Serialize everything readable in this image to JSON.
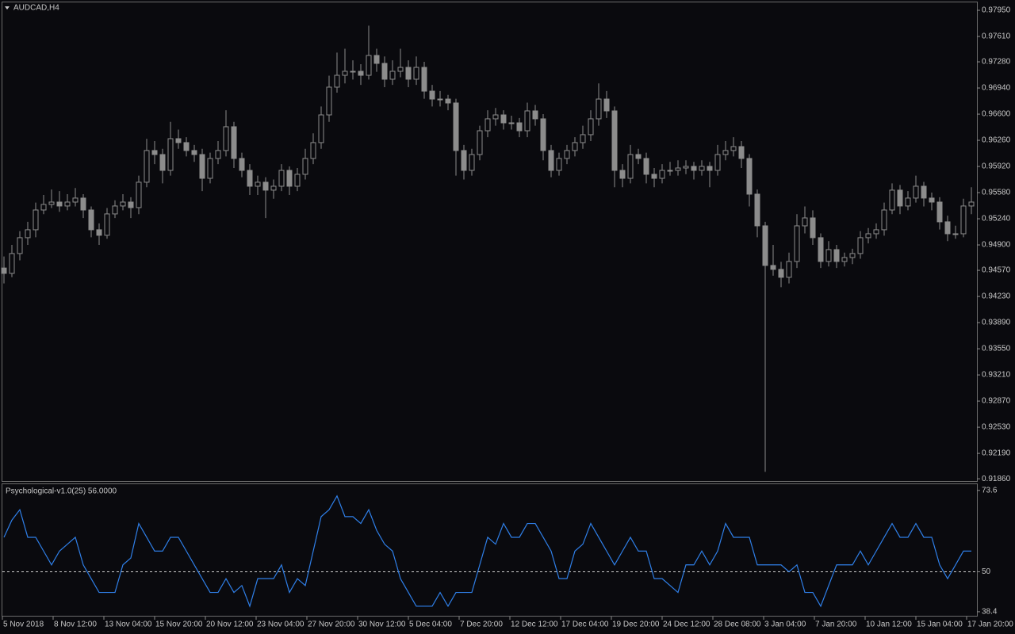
{
  "chart_data": [
    {
      "type": "candlestick",
      "title": "AUDCAD,H4",
      "color": "#8c8c8c",
      "open": [
        0.946,
        0.9453,
        0.94788,
        0.94994,
        0.95097,
        0.95354,
        0.95426,
        0.95457,
        0.95406,
        0.95457,
        0.95509,
        0.95354,
        0.95097,
        0.95025,
        0.95303,
        0.95406,
        0.95457,
        0.95385,
        0.95715,
        0.96127,
        0.96075,
        0.95869,
        0.96281,
        0.9623,
        0.96127,
        0.96075,
        0.95766,
        0.96024,
        0.96127,
        0.96436,
        0.96024,
        0.95869,
        0.95663,
        0.95715,
        0.95612,
        0.95663,
        0.95869,
        0.95663,
        0.95818,
        0.96024,
        0.9623,
        0.9659,
        0.96951,
        0.97105,
        0.97157,
        0.97157,
        0.97105,
        0.97363,
        0.9726,
        0.97054,
        0.97157,
        0.97208,
        0.97054,
        0.97208,
        0.96899,
        0.96796,
        0.96796,
        0.96745,
        0.96127,
        0.95869,
        0.96075,
        0.96384,
        0.96539,
        0.9659,
        0.96487,
        0.96487,
        0.96384,
        0.96642,
        0.96539,
        0.96127,
        0.95869,
        0.96024,
        0.96127,
        0.9623,
        0.96333,
        0.96539,
        0.96796,
        0.96642,
        0.95869,
        0.95766,
        0.96075,
        0.96024,
        0.95818,
        0.95766,
        0.95869,
        0.95869,
        0.959,
        0.95921,
        0.95869,
        0.95921,
        0.95869,
        0.96075,
        0.96127,
        0.96178,
        0.96024,
        0.9556,
        0.95148,
        0.94633,
        0.94582,
        0.94479,
        0.94685,
        0.95148,
        0.95251,
        0.94994,
        0.94685,
        0.94839,
        0.94685,
        0.94736,
        0.94788,
        0.94994,
        0.95045,
        0.95097,
        0.95354,
        0.95612,
        0.95406,
        0.95509,
        0.95663,
        0.95509,
        0.95457,
        0.952,
        0.95045,
        0.95045,
        0.95406
      ],
      "high": [
        0.9475,
        0.949,
        0.9508,
        0.952,
        0.9545,
        0.9555,
        0.9562,
        0.956,
        0.9556,
        0.9564,
        0.9556,
        0.954,
        0.9518,
        0.9538,
        0.9548,
        0.9556,
        0.9552,
        0.958,
        0.9628,
        0.9625,
        0.9615,
        0.965,
        0.964,
        0.963,
        0.962,
        0.9615,
        0.961,
        0.9625,
        0.9665,
        0.965,
        0.961,
        0.9595,
        0.958,
        0.9578,
        0.9575,
        0.9595,
        0.9592,
        0.959,
        0.9615,
        0.9635,
        0.967,
        0.971,
        0.974,
        0.9745,
        0.973,
        0.9725,
        0.9775,
        0.9745,
        0.9735,
        0.973,
        0.9745,
        0.973,
        0.9735,
        0.9728,
        0.9698,
        0.969,
        0.9685,
        0.968,
        0.962,
        0.9615,
        0.9645,
        0.9665,
        0.9668,
        0.9665,
        0.9658,
        0.9655,
        0.9675,
        0.9672,
        0.966,
        0.962,
        0.961,
        0.962,
        0.963,
        0.9645,
        0.9665,
        0.97,
        0.969,
        0.967,
        0.9595,
        0.962,
        0.9615,
        0.961,
        0.959,
        0.9595,
        0.9598,
        0.96,
        0.96,
        0.9598,
        0.96,
        0.9598,
        0.962,
        0.9625,
        0.963,
        0.9625,
        0.9608,
        0.9562,
        0.952,
        0.949,
        0.9468,
        0.948,
        0.953,
        0.954,
        0.9535,
        0.9505,
        0.9495,
        0.949,
        0.948,
        0.9485,
        0.9508,
        0.9512,
        0.9518,
        0.9545,
        0.957,
        0.9568,
        0.956,
        0.958,
        0.9572,
        0.9558,
        0.9552,
        0.9528,
        0.9515,
        0.955,
        0.9565
      ],
      "low": [
        0.944,
        0.9448,
        0.947,
        0.949,
        0.95,
        0.953,
        0.9538,
        0.9533,
        0.9535,
        0.954,
        0.9525,
        0.95,
        0.949,
        0.9498,
        0.9525,
        0.9535,
        0.9525,
        0.953,
        0.9565,
        0.9595,
        0.957,
        0.958,
        0.9615,
        0.9605,
        0.9598,
        0.956,
        0.957,
        0.9595,
        0.9605,
        0.959,
        0.9578,
        0.9555,
        0.9555,
        0.9525,
        0.955,
        0.956,
        0.9555,
        0.956,
        0.9575,
        0.9595,
        0.9615,
        0.965,
        0.9688,
        0.97,
        0.9705,
        0.9698,
        0.9705,
        0.9715,
        0.9695,
        0.9698,
        0.9708,
        0.9695,
        0.9698,
        0.968,
        0.967,
        0.967,
        0.9665,
        0.958,
        0.9575,
        0.958,
        0.96,
        0.963,
        0.9645,
        0.964,
        0.964,
        0.963,
        0.963,
        0.9645,
        0.96,
        0.9578,
        0.958,
        0.9595,
        0.9605,
        0.9615,
        0.9625,
        0.9645,
        0.9655,
        0.9565,
        0.9565,
        0.957,
        0.9595,
        0.957,
        0.9565,
        0.957,
        0.958,
        0.958,
        0.9582,
        0.9575,
        0.958,
        0.9565,
        0.958,
        0.96,
        0.9605,
        0.959,
        0.954,
        0.95,
        0.9195,
        0.945,
        0.9435,
        0.944,
        0.946,
        0.9505,
        0.949,
        0.946,
        0.9462,
        0.946,
        0.9462,
        0.9465,
        0.9472,
        0.9492,
        0.9498,
        0.9502,
        0.953,
        0.953,
        0.9535,
        0.9545,
        0.954,
        0.9535,
        0.951,
        0.9495,
        0.9498,
        0.95,
        0.953
      ],
      "close": [
        0.9453,
        0.94788,
        0.94994,
        0.95097,
        0.95354,
        0.95426,
        0.95457,
        0.95406,
        0.95457,
        0.95509,
        0.95354,
        0.95097,
        0.95025,
        0.95303,
        0.95406,
        0.95457,
        0.95385,
        0.95715,
        0.96127,
        0.96075,
        0.95869,
        0.96281,
        0.9623,
        0.96127,
        0.96075,
        0.95766,
        0.96024,
        0.96127,
        0.96436,
        0.96024,
        0.95869,
        0.95663,
        0.95715,
        0.95612,
        0.95663,
        0.95869,
        0.95663,
        0.95818,
        0.96024,
        0.9623,
        0.9659,
        0.96951,
        0.97105,
        0.97157,
        0.97157,
        0.97105,
        0.97363,
        0.9726,
        0.97054,
        0.97157,
        0.97208,
        0.97054,
        0.97208,
        0.96899,
        0.96796,
        0.96796,
        0.96745,
        0.96127,
        0.95869,
        0.96075,
        0.96384,
        0.96539,
        0.9659,
        0.96487,
        0.96487,
        0.96384,
        0.96642,
        0.96539,
        0.96127,
        0.95869,
        0.96024,
        0.96127,
        0.9623,
        0.96333,
        0.96539,
        0.96796,
        0.96642,
        0.95869,
        0.95766,
        0.96075,
        0.96024,
        0.95818,
        0.95766,
        0.95869,
        0.95869,
        0.959,
        0.95921,
        0.95869,
        0.95921,
        0.95869,
        0.96075,
        0.96127,
        0.96178,
        0.96024,
        0.9556,
        0.95148,
        0.94633,
        0.94582,
        0.94479,
        0.94685,
        0.95148,
        0.95251,
        0.94994,
        0.94685,
        0.94839,
        0.94685,
        0.94736,
        0.94788,
        0.94994,
        0.95045,
        0.95097,
        0.95354,
        0.95612,
        0.95406,
        0.95509,
        0.95663,
        0.95509,
        0.95457,
        0.952,
        0.95045,
        0.95045,
        0.95406,
        0.95457
      ],
      "ylim": [
        0.9182,
        0.98053
      ],
      "yticks": [
        {
          "value": 0.9795,
          "label": "0.97950"
        },
        {
          "value": 0.9761,
          "label": "0.97610"
        },
        {
          "value": 0.9728,
          "label": "0.97280"
        },
        {
          "value": 0.9694,
          "label": "0.96940"
        },
        {
          "value": 0.966,
          "label": "0.96600"
        },
        {
          "value": 0.9626,
          "label": "0.96260"
        },
        {
          "value": 0.9592,
          "label": "0.95920"
        },
        {
          "value": 0.9558,
          "label": "0.95580"
        },
        {
          "value": 0.9524,
          "label": "0.95240"
        },
        {
          "value": 0.949,
          "label": "0.94900"
        },
        {
          "value": 0.9457,
          "label": "0.94570"
        },
        {
          "value": 0.9423,
          "label": "0.94230"
        },
        {
          "value": 0.9389,
          "label": "0.93890"
        },
        {
          "value": 0.9355,
          "label": "0.93550"
        },
        {
          "value": 0.9321,
          "label": "0.93210"
        },
        {
          "value": 0.9287,
          "label": "0.92870"
        },
        {
          "value": 0.9253,
          "label": "0.92530"
        },
        {
          "value": 0.9219,
          "label": "0.92190"
        },
        {
          "value": 0.9186,
          "label": "0.91860"
        }
      ]
    },
    {
      "type": "line",
      "title": "Psychological-v1.0(25) 56.0000",
      "color": "#2f7fe8",
      "values": [
        60,
        65,
        68,
        60,
        60,
        56,
        52,
        56,
        58,
        60,
        52,
        48,
        44,
        44,
        44,
        52,
        54,
        64,
        60,
        56,
        56,
        60,
        60,
        56,
        52,
        48,
        44,
        44,
        48,
        44,
        46,
        40,
        48,
        48,
        48,
        52,
        44,
        48,
        46,
        56,
        66,
        68,
        72,
        66,
        66,
        64,
        68,
        62,
        58,
        56,
        48,
        44,
        40,
        40,
        40,
        44,
        40,
        44,
        44,
        44,
        52,
        60,
        58,
        64,
        60,
        60,
        64,
        64,
        60,
        56,
        48,
        48,
        56,
        58,
        64,
        60,
        56,
        52,
        56,
        60,
        56,
        56,
        48,
        48,
        46,
        44,
        52,
        52,
        56,
        52,
        56,
        64,
        60,
        60,
        60,
        52,
        52,
        52,
        52,
        50,
        52,
        44,
        44,
        40,
        46,
        52,
        52,
        52,
        56,
        52,
        56,
        60,
        64,
        60,
        60,
        64,
        60,
        60,
        52,
        48,
        52,
        56,
        56
      ],
      "ylim": [
        37.0,
        75.4
      ],
      "yticks": [
        73.6,
        50,
        38.4
      ],
      "level": 50,
      "x_labels": [
        "5 Nov 2018",
        "8 Nov 12:00",
        "13 Nov 04:00",
        "15 Nov 20:00",
        "20 Nov 12:00",
        "23 Nov 04:00",
        "27 Nov 20:00",
        "30 Nov 12:00",
        "5 Dec 04:00",
        "7 Dec 20:00",
        "12 Dec 12:00",
        "17 Dec 04:00",
        "19 Dec 20:00",
        "24 Dec 12:00",
        "28 Dec 08:00",
        "3 Jan 04:00",
        "7 Jan 20:00",
        "10 Jan 12:00",
        "15 Jan 04:00",
        "17 Jan 20:00"
      ]
    }
  ]
}
